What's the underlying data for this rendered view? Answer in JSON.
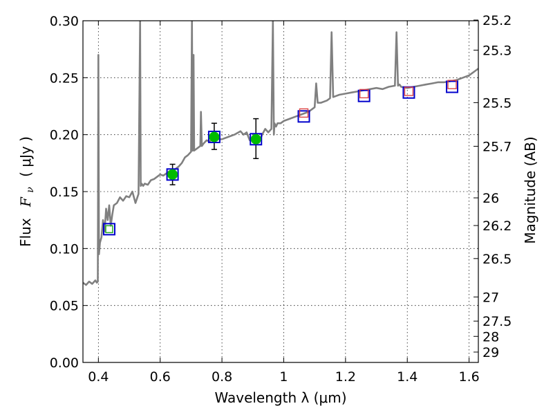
{
  "chart_data": {
    "type": "scatter",
    "xlabel": "Wavelength  λ (μm)",
    "ylabel_left_text": "Flux",
    "ylabel_left_symbol": "F",
    "ylabel_left_symbol_sub": "ν",
    "ylabel_left_unit": "(  μJy )",
    "ylabel_right": "Magnitude (AB)",
    "xlim": [
      0.35,
      1.63
    ],
    "ylim": [
      0.0,
      0.3
    ],
    "x_ticks": [
      0.4,
      0.6,
      0.8,
      1.0,
      1.2,
      1.4,
      1.6
    ],
    "x_tick_labels": [
      "0.4",
      "0.6",
      "0.8",
      "1",
      "1.2",
      "1.4",
      "1.6"
    ],
    "y_ticks": [
      0.0,
      0.05,
      0.1,
      0.15,
      0.2,
      0.25,
      0.3
    ],
    "y_tick_labels": [
      "0.00",
      "0.05",
      "0.10",
      "0.15",
      "0.20",
      "0.25",
      "0.30"
    ],
    "right_ticks": [
      {
        "flux": 0.3006,
        "label": "25.2"
      },
      {
        "flux": 0.2742,
        "label": "25.3"
      },
      {
        "flux": 0.2281,
        "label": "25.5"
      },
      {
        "flux": 0.1898,
        "label": "25.7"
      },
      {
        "flux": 0.1445,
        "label": "26"
      },
      {
        "flux": 0.1202,
        "label": "26.2"
      },
      {
        "flux": 0.0912,
        "label": "26.5"
      },
      {
        "flux": 0.0575,
        "label": "27"
      },
      {
        "flux": 0.0363,
        "label": "27.5"
      },
      {
        "flux": 0.0229,
        "label": "28"
      },
      {
        "flux": 0.0091,
        "label": "29"
      }
    ],
    "grid": true,
    "colors": {
      "spectrum": "#808080",
      "model_box": "#0000cc",
      "photometry_fill": "#00bb00",
      "nir_marker": "#dd4444",
      "blue_band_marker": "#22aa22",
      "errorbar": "#000000"
    },
    "spectrum": {
      "x": [
        0.35,
        0.36,
        0.37,
        0.38,
        0.39,
        0.395,
        0.398,
        0.4,
        0.402,
        0.405,
        0.41,
        0.415,
        0.42,
        0.425,
        0.43,
        0.435,
        0.44,
        0.445,
        0.45,
        0.46,
        0.47,
        0.48,
        0.49,
        0.5,
        0.51,
        0.52,
        0.53,
        0.535,
        0.537,
        0.54,
        0.545,
        0.55,
        0.56,
        0.57,
        0.58,
        0.59,
        0.6,
        0.61,
        0.62,
        0.63,
        0.64,
        0.65,
        0.66,
        0.67,
        0.68,
        0.69,
        0.7,
        0.703,
        0.705,
        0.708,
        0.71,
        0.72,
        0.73,
        0.732,
        0.735,
        0.74,
        0.75,
        0.76,
        0.77,
        0.78,
        0.79,
        0.8,
        0.82,
        0.84,
        0.86,
        0.87,
        0.88,
        0.89,
        0.9,
        0.91,
        0.92,
        0.93,
        0.94,
        0.95,
        0.96,
        0.965,
        0.968,
        0.97,
        0.975,
        0.98,
        0.99,
        1.0,
        1.02,
        1.04,
        1.06,
        1.08,
        1.09,
        1.1,
        1.105,
        1.11,
        1.12,
        1.14,
        1.15,
        1.155,
        1.16,
        1.17,
        1.18,
        1.2,
        1.22,
        1.24,
        1.26,
        1.28,
        1.3,
        1.32,
        1.34,
        1.36,
        1.365,
        1.37,
        1.375,
        1.38,
        1.4,
        1.42,
        1.44,
        1.46,
        1.48,
        1.5,
        1.52,
        1.54,
        1.56,
        1.58,
        1.6,
        1.61,
        1.62,
        1.63
      ],
      "y": [
        0.07,
        0.068,
        0.071,
        0.069,
        0.072,
        0.07,
        0.071,
        0.27,
        0.095,
        0.105,
        0.11,
        0.125,
        0.115,
        0.135,
        0.125,
        0.138,
        0.12,
        0.13,
        0.138,
        0.14,
        0.145,
        0.142,
        0.146,
        0.145,
        0.15,
        0.14,
        0.148,
        0.3,
        0.155,
        0.157,
        0.155,
        0.157,
        0.156,
        0.16,
        0.161,
        0.163,
        0.165,
        0.164,
        0.166,
        0.168,
        0.168,
        0.17,
        0.172,
        0.175,
        0.18,
        0.182,
        0.185,
        0.3,
        0.186,
        0.27,
        0.186,
        0.188,
        0.19,
        0.22,
        0.19,
        0.192,
        0.195,
        0.194,
        0.196,
        0.197,
        0.196,
        0.196,
        0.198,
        0.2,
        0.203,
        0.2,
        0.202,
        0.195,
        0.198,
        0.196,
        0.193,
        0.2,
        0.205,
        0.202,
        0.205,
        0.3,
        0.2,
        0.21,
        0.207,
        0.21,
        0.21,
        0.212,
        0.214,
        0.216,
        0.218,
        0.22,
        0.222,
        0.224,
        0.245,
        0.228,
        0.228,
        0.23,
        0.232,
        0.29,
        0.233,
        0.234,
        0.235,
        0.236,
        0.237,
        0.238,
        0.239,
        0.24,
        0.241,
        0.24,
        0.242,
        0.243,
        0.29,
        0.243,
        0.244,
        0.242,
        0.241,
        0.242,
        0.243,
        0.244,
        0.245,
        0.246,
        0.246,
        0.247,
        0.248,
        0.25,
        0.252,
        0.254,
        0.256,
        0.258
      ]
    },
    "model_boxes": {
      "x": [
        0.435,
        0.64,
        0.775,
        0.91,
        1.065,
        1.26,
        1.405,
        1.545
      ],
      "y": [
        0.117,
        0.165,
        0.198,
        0.196,
        0.216,
        0.234,
        0.237,
        0.242
      ]
    },
    "photometry_points": {
      "x": [
        0.64,
        0.775,
        0.91
      ],
      "y": [
        0.165,
        0.198,
        0.196
      ],
      "err_low": [
        0.009,
        0.011,
        0.017
      ],
      "err_high": [
        0.009,
        0.012,
        0.018
      ]
    },
    "blue_band_marker": {
      "x": [
        0.435
      ],
      "y": [
        0.117
      ]
    },
    "nir_markers": {
      "x": [
        1.065,
        1.26,
        1.405,
        1.545
      ],
      "y": [
        0.219,
        0.236,
        0.238,
        0.244
      ]
    }
  }
}
